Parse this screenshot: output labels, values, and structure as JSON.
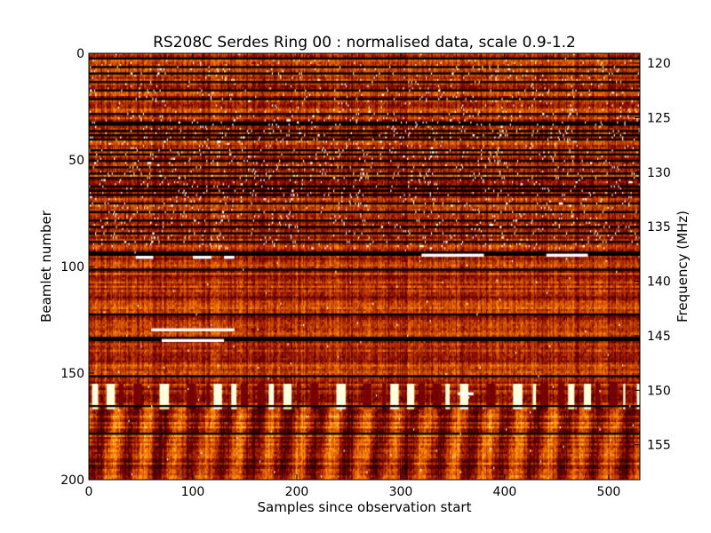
{
  "chart_data": {
    "type": "heatmap",
    "title": "RS208C Serdes Ring 00 : normalised data, scale 0.9-1.2",
    "xlabel": "Samples since observation start",
    "ylabel": "Beamlet number",
    "y2label": "Frequency (MHz)",
    "xlim": [
      0,
      530
    ],
    "ylim": [
      200,
      0
    ],
    "y2lim": [
      119.1,
      158.2
    ],
    "color_scale": {
      "min": 0.9,
      "max": 1.2,
      "colormap": "afmhot"
    },
    "xticks": [
      {
        "v": 0,
        "t": "0"
      },
      {
        "v": 100,
        "t": "100"
      },
      {
        "v": 200,
        "t": "200"
      },
      {
        "v": 300,
        "t": "300"
      },
      {
        "v": 400,
        "t": "400"
      },
      {
        "v": 500,
        "t": "500"
      }
    ],
    "yticks": [
      {
        "v": 0,
        "t": "0"
      },
      {
        "v": 50,
        "t": "50"
      },
      {
        "v": 100,
        "t": "100"
      },
      {
        "v": 150,
        "t": "150"
      },
      {
        "v": 200,
        "t": "200"
      }
    ],
    "y2ticks": [
      {
        "v": 120,
        "t": "120"
      },
      {
        "v": 125,
        "t": "125"
      },
      {
        "v": 130,
        "t": "130"
      },
      {
        "v": 135,
        "t": "135"
      },
      {
        "v": 140,
        "t": "140"
      },
      {
        "v": 145,
        "t": "145"
      },
      {
        "v": 150,
        "t": "150"
      },
      {
        "v": 155,
        "t": "155"
      }
    ],
    "dark_rows": [
      2,
      6,
      9,
      13,
      17,
      21,
      28,
      32,
      33,
      36,
      38,
      40,
      45,
      47,
      50,
      53,
      56,
      58,
      62,
      64,
      66,
      70,
      74,
      78,
      81,
      84,
      88,
      93,
      94,
      101,
      122,
      133,
      134,
      151,
      165,
      178
    ],
    "speckled_rows": [
      [
        3,
        30,
        0.35
      ],
      [
        30,
        60,
        0.5
      ],
      [
        60,
        92,
        0.45
      ]
    ],
    "bright_segments": [
      {
        "row": 95,
        "x0": 45,
        "x1": 62
      },
      {
        "row": 95,
        "x0": 100,
        "x1": 118
      },
      {
        "row": 95,
        "x0": 130,
        "x1": 140
      },
      {
        "row": 94,
        "x0": 320,
        "x1": 380
      },
      {
        "row": 94,
        "x0": 440,
        "x1": 480
      },
      {
        "row": 129,
        "x0": 60,
        "x1": 140
      },
      {
        "row": 134,
        "x0": 70,
        "x1": 130
      },
      {
        "row": 159,
        "x0": 355,
        "x1": 370
      }
    ],
    "banded_region": {
      "row0": 155,
      "row1": 166,
      "level_high": 1.18,
      "level_low": 0.97
    }
  }
}
